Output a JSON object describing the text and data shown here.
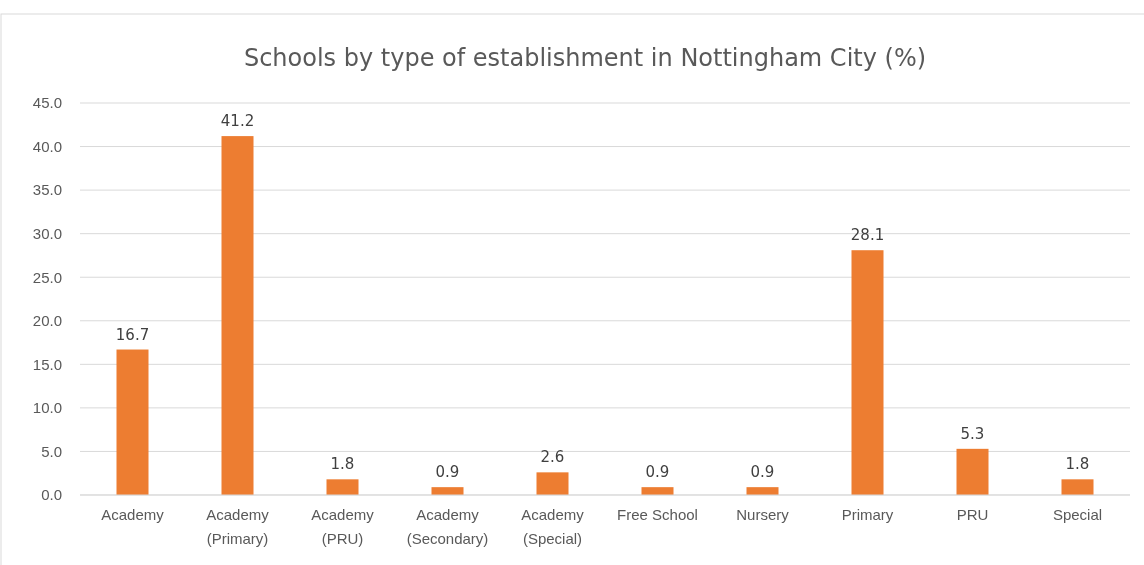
{
  "chart_data": {
    "type": "bar",
    "title": "Schools by type of establishment in Nottingham City (%)",
    "categories": [
      "Academy",
      "Academy (Primary)",
      "Academy (PRU)",
      "Academy (Secondary)",
      "Academy (Special)",
      "Free School",
      "Nursery",
      "Primary",
      "PRU",
      "Special"
    ],
    "values": [
      16.7,
      41.2,
      1.8,
      0.9,
      2.6,
      0.9,
      0.9,
      28.1,
      5.3,
      1.8
    ],
    "color": "#ed7d31",
    "ylim": [
      0,
      45
    ],
    "yticks": [
      {
        "value": 0,
        "label": "0.0"
      },
      {
        "value": 5,
        "label": "5.0"
      },
      {
        "value": 10,
        "label": "10.0"
      },
      {
        "value": 15,
        "label": "15.0"
      },
      {
        "value": 20,
        "label": "20.0"
      },
      {
        "value": 25,
        "label": "25.0"
      },
      {
        "value": 30,
        "label": "30.0"
      },
      {
        "value": 35,
        "label": "35.0"
      },
      {
        "value": 40,
        "label": "40.0"
      },
      {
        "value": 45,
        "label": "45.0"
      }
    ],
    "grid": "y",
    "data_labels": true
  }
}
